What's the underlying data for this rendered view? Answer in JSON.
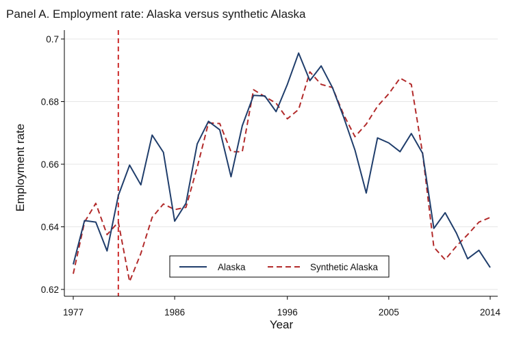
{
  "chart_data": {
    "type": "line",
    "title": "Panel A. Employment rate: Alaska versus synthetic Alaska",
    "xlabel": "Year",
    "ylabel": "Employment rate",
    "xlim": [
      1977,
      2014
    ],
    "ylim": [
      0.62,
      0.7
    ],
    "x_ticks": [
      1977,
      1986,
      1996,
      2005,
      2014
    ],
    "x_tick_labels": [
      "1977",
      "1986",
      "1996",
      "2005",
      "2014"
    ],
    "y_ticks": [
      0.62,
      0.64,
      0.66,
      0.68,
      0.7
    ],
    "y_tick_labels": [
      "0.62",
      "0.64",
      "0.66",
      "0.68",
      "0.7"
    ],
    "vline_x": 1981,
    "grid": true,
    "legend_position": "bottom-center",
    "x": [
      1977,
      1978,
      1979,
      1980,
      1981,
      1982,
      1983,
      1984,
      1985,
      1986,
      1987,
      1988,
      1989,
      1990,
      1991,
      1992,
      1993,
      1994,
      1995,
      1996,
      1997,
      1998,
      1999,
      2000,
      2001,
      2002,
      2003,
      2004,
      2005,
      2006,
      2007,
      2008,
      2009,
      2010,
      2011,
      2012,
      2013,
      2014
    ],
    "series": [
      {
        "name": "Alaska",
        "color": "#1f3d6b",
        "dash": "solid",
        "values": [
          0.628,
          0.642,
          0.6415,
          0.6323,
          0.65,
          0.6597,
          0.6534,
          0.6693,
          0.6638,
          0.6418,
          0.6475,
          0.6665,
          0.6737,
          0.671,
          0.656,
          0.6723,
          0.682,
          0.6818,
          0.6768,
          0.6855,
          0.6955,
          0.6867,
          0.6914,
          0.6845,
          0.675,
          0.6645,
          0.6508,
          0.6684,
          0.6668,
          0.664,
          0.6698,
          0.6635,
          0.6395,
          0.6445,
          0.638,
          0.6298,
          0.6325,
          0.627
        ]
      },
      {
        "name": "Synthetic Alaska",
        "color": "#b22a2a",
        "dash": "dashed",
        "values": [
          0.625,
          0.6415,
          0.6475,
          0.6375,
          0.6415,
          0.6225,
          0.6315,
          0.643,
          0.6473,
          0.6455,
          0.6462,
          0.659,
          0.6732,
          0.673,
          0.664,
          0.664,
          0.6838,
          0.6816,
          0.6795,
          0.6745,
          0.6775,
          0.6895,
          0.6855,
          0.6845,
          0.6758,
          0.6688,
          0.6728,
          0.6785,
          0.6825,
          0.6875,
          0.6855,
          0.6635,
          0.6335,
          0.6295,
          0.6338,
          0.6375,
          0.6415,
          0.643
        ]
      }
    ]
  }
}
